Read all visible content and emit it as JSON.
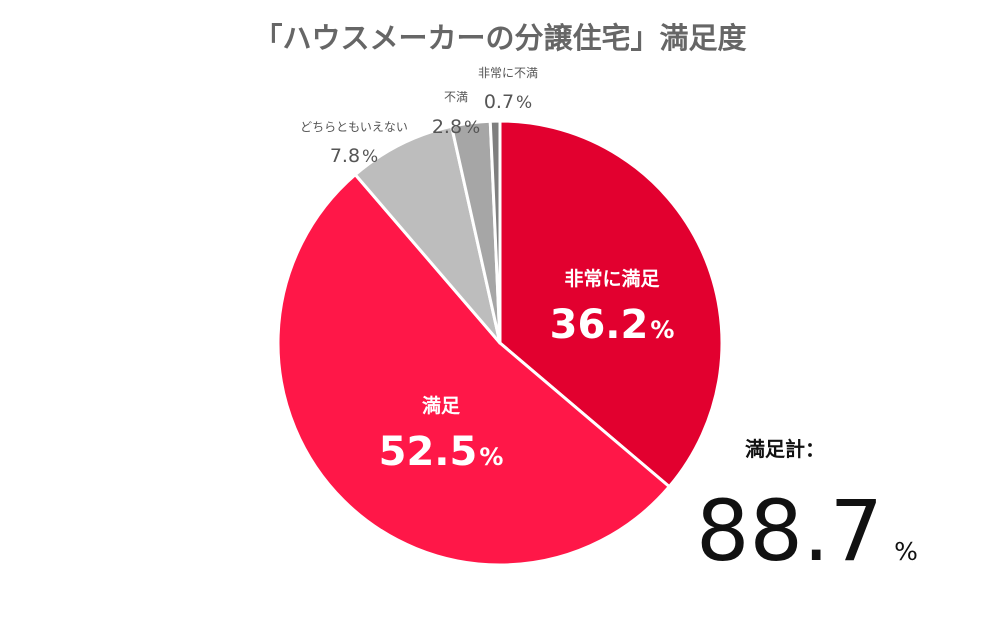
{
  "chart_data": {
    "type": "pie",
    "title": "「ハウスメーカーの分譲住宅」満足度",
    "slices": [
      {
        "label": "非常に満足",
        "value": 36.2,
        "value_text": "36.2",
        "color": "#E2002F"
      },
      {
        "label": "満足",
        "value": 52.5,
        "value_text": "52.5",
        "color": "#FF1748"
      },
      {
        "label": "どちらともいえない",
        "value": 7.8,
        "value_text": "7.8",
        "color": "#BDBDBD"
      },
      {
        "label": "不満",
        "value": 2.8,
        "value_text": "2.8",
        "color": "#A6A6A6"
      },
      {
        "label": "非常に不満",
        "value": 0.7,
        "value_text": "0.7",
        "color": "#7F7F7F"
      }
    ],
    "unit": "%",
    "start_direction": "top",
    "direction": "clockwise",
    "total": {
      "label": "満足計：",
      "value": "88.7",
      "unit": "%"
    }
  }
}
